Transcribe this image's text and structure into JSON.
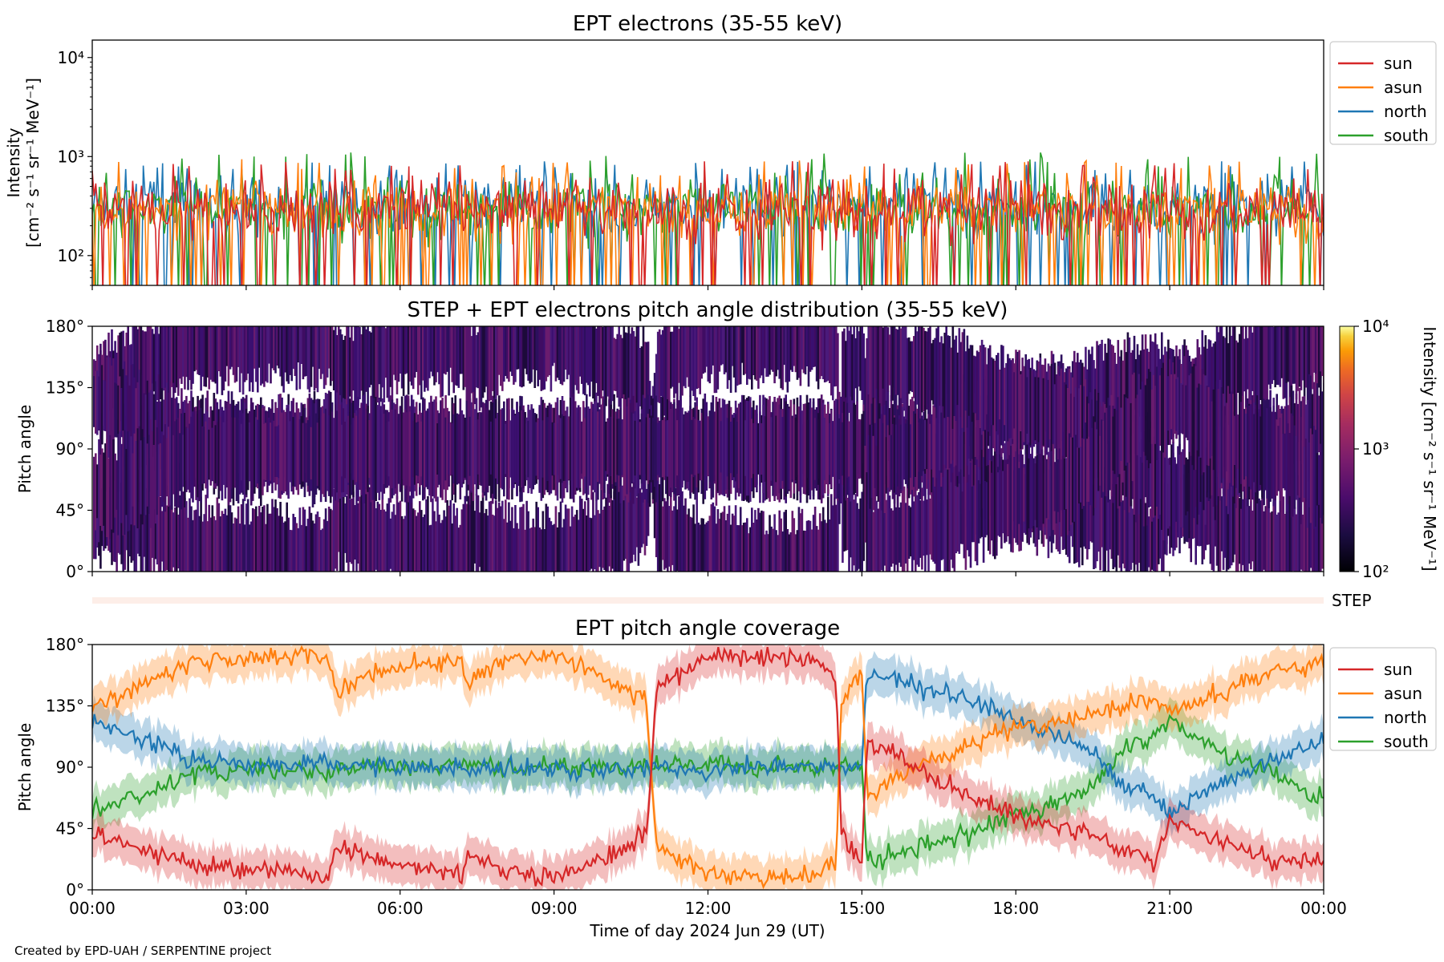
{
  "footer": "Created by EPD-UAH / SERPENTINE project",
  "colors": {
    "sun": "#d62728",
    "asun": "#ff7f0e",
    "north": "#1f77b4",
    "south": "#2ca02c",
    "step_band": "#fdeee8"
  },
  "chart_data": [
    {
      "type": "line",
      "title": "EPT electrons (35-55 keV)",
      "ylabel_line1": "Intensity",
      "ylabel_line2": "[cm⁻² s⁻¹ sr⁻¹ MeV⁻¹]",
      "yscale": "log",
      "ylim": [
        50,
        15000
      ],
      "yticks": [
        "10²",
        "10³",
        "10⁴"
      ],
      "ytick_values": [
        100,
        1000,
        10000
      ],
      "legend": [
        "sun",
        "asun",
        "north",
        "south"
      ],
      "legend_position": "outside right, top",
      "x_range": [
        "2024-06-29 00:00",
        "2024-06-30 00:00"
      ],
      "series": [
        {
          "name": "sun",
          "typical": 300,
          "min": 50,
          "max": 900
        },
        {
          "name": "asun",
          "typical": 300,
          "min": 50,
          "max": 950
        },
        {
          "name": "north",
          "typical": 320,
          "min": 50,
          "max": 900
        },
        {
          "name": "south",
          "typical": 310,
          "min": 50,
          "max": 1100
        }
      ]
    },
    {
      "type": "heatmap",
      "title": "STEP + EPT electrons pitch angle distribution (35-55 keV)",
      "ylabel": "Pitch angle",
      "yticks": [
        "0°",
        "45°",
        "90°",
        "135°",
        "180°"
      ],
      "ylim": [
        0,
        180
      ],
      "colorbar_label": "Intensity [cm⁻² s⁻¹ sr⁻¹ MeV⁻¹]",
      "colorbar_ticks": [
        "10²",
        "10³",
        "10⁴"
      ],
      "colorbar_range": [
        100,
        10000
      ],
      "colormap": "inferno",
      "step_label": "STEP"
    },
    {
      "type": "line",
      "title": "EPT pitch angle coverage",
      "ylabel": "Pitch angle",
      "xlabel": "Time of day 2024 Jun 29 (UT)",
      "yticks": [
        "0°",
        "45°",
        "90°",
        "135°",
        "180°"
      ],
      "ylim": [
        0,
        180
      ],
      "xticks": [
        "00:00",
        "03:00",
        "06:00",
        "09:00",
        "12:00",
        "15:00",
        "18:00",
        "21:00",
        "00:00"
      ],
      "legend": [
        "sun",
        "asun",
        "north",
        "south"
      ],
      "legend_position": "outside right, top",
      "x": [
        0,
        1,
        2,
        3,
        4,
        4.6,
        4.75,
        5,
        6,
        7,
        7.2,
        7.3,
        8,
        9,
        10,
        10.8,
        11,
        12,
        13,
        14,
        14.5,
        14.6,
        15,
        15.1,
        16,
        17,
        18,
        19,
        19.6,
        20,
        20.7,
        21,
        22,
        23,
        24
      ],
      "series": [
        {
          "name": "sun",
          "values": [
            42,
            30,
            18,
            15,
            12,
            8,
            35,
            30,
            18,
            14,
            12,
            28,
            14,
            10,
            25,
            40,
            150,
            170,
            172,
            170,
            160,
            40,
            20,
            110,
            90,
            70,
            55,
            45,
            40,
            30,
            20,
            50,
            35,
            20,
            22
          ]
        },
        {
          "name": "asun",
          "values": [
            135,
            150,
            168,
            170,
            172,
            170,
            145,
            150,
            165,
            168,
            170,
            150,
            168,
            172,
            155,
            140,
            30,
            12,
            8,
            10,
            20,
            140,
            160,
            70,
            90,
            105,
            118,
            125,
            130,
            135,
            140,
            130,
            145,
            160,
            165
          ]
        },
        {
          "name": "north",
          "values": [
            125,
            110,
            95,
            92,
            92,
            95,
            92,
            90,
            90,
            90,
            90,
            88,
            90,
            90,
            88,
            90,
            90,
            88,
            90,
            90,
            90,
            90,
            90,
            160,
            150,
            140,
            125,
            110,
            100,
            80,
            70,
            55,
            80,
            95,
            110
          ]
        },
        {
          "name": "south",
          "values": [
            58,
            70,
            85,
            88,
            88,
            85,
            88,
            90,
            90,
            90,
            90,
            92,
            90,
            90,
            92,
            90,
            90,
            92,
            90,
            90,
            90,
            90,
            90,
            20,
            30,
            40,
            55,
            65,
            80,
            100,
            115,
            125,
            100,
            85,
            65
          ]
        }
      ]
    }
  ]
}
